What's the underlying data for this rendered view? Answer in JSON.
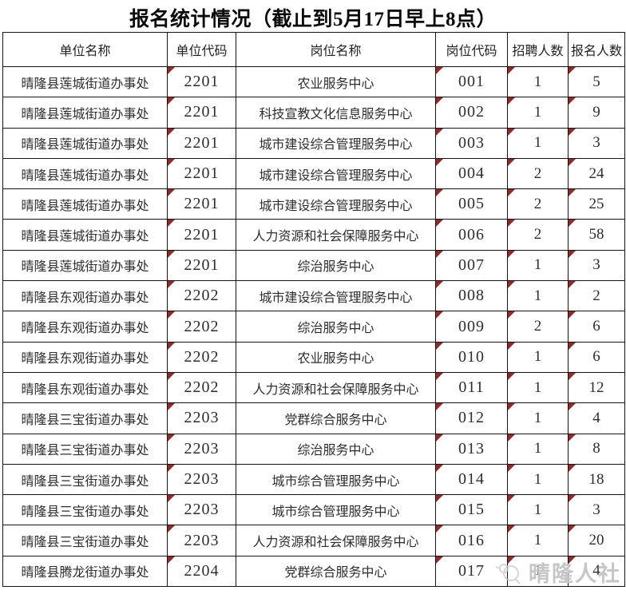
{
  "title": "报名统计情况（截止到5月17日早上8点）",
  "watermark": {
    "text": "晴隆人社",
    "icon": "bird-mascot-logo"
  },
  "colors": {
    "border": "#141414",
    "text": "#2d2d2d",
    "comment_marker": "#8e2b2b",
    "watermark": "#c6c6c6",
    "background": "#ffffff"
  },
  "table": {
    "columns": [
      "单位名称",
      "单位代码",
      "岗位名称",
      "岗位代码",
      "招聘人数",
      "报名人数"
    ],
    "rows": [
      [
        "晴隆县莲城街道办事处",
        "2201",
        "农业服务中心",
        "001",
        "1",
        "5"
      ],
      [
        "晴隆县莲城街道办事处",
        "2201",
        "科技宣教文化信息服务中心",
        "002",
        "1",
        "9"
      ],
      [
        "晴隆县莲城街道办事处",
        "2201",
        "城市建设综合管理服务中心",
        "003",
        "1",
        "3"
      ],
      [
        "晴隆县莲城街道办事处",
        "2201",
        "城市建设综合管理服务中心",
        "004",
        "2",
        "24"
      ],
      [
        "晴隆县莲城街道办事处",
        "2201",
        "城市建设综合管理服务中心",
        "005",
        "2",
        "25"
      ],
      [
        "晴隆县莲城街道办事处",
        "2201",
        "人力资源和社会保障服务中心",
        "006",
        "2",
        "58"
      ],
      [
        "晴隆县莲城街道办事处",
        "2201",
        "综治服务中心",
        "007",
        "1",
        "3"
      ],
      [
        "晴隆县东观街道办事处",
        "2202",
        "城市建设综合管理服务中心",
        "008",
        "1",
        "2"
      ],
      [
        "晴隆县东观街道办事处",
        "2202",
        "综治服务中心",
        "009",
        "2",
        "6"
      ],
      [
        "晴隆县东观街道办事处",
        "2202",
        "农业服务中心",
        "010",
        "1",
        "6"
      ],
      [
        "晴隆县东观街道办事处",
        "2202",
        "人力资源和社会保障服务中心",
        "011",
        "1",
        "12"
      ],
      [
        "晴隆县三宝街道办事处",
        "2203",
        "党群综合服务中心",
        "012",
        "1",
        "4"
      ],
      [
        "晴隆县三宝街道办事处",
        "2203",
        "综治服务中心",
        "013",
        "1",
        "8"
      ],
      [
        "晴隆县三宝街道办事处",
        "2203",
        "城市综合管理服务中心",
        "014",
        "1",
        "18"
      ],
      [
        "晴隆县三宝街道办事处",
        "2203",
        "城市综合管理服务中心",
        "015",
        "1",
        "3"
      ],
      [
        "晴隆县三宝街道办事处",
        "2203",
        "人力资源和社会保障服务中心",
        "016",
        "1",
        "20"
      ],
      [
        "晴隆县腾龙街道办事处",
        "2204",
        "党群综合服务中心",
        "017",
        "1",
        "4"
      ]
    ]
  }
}
